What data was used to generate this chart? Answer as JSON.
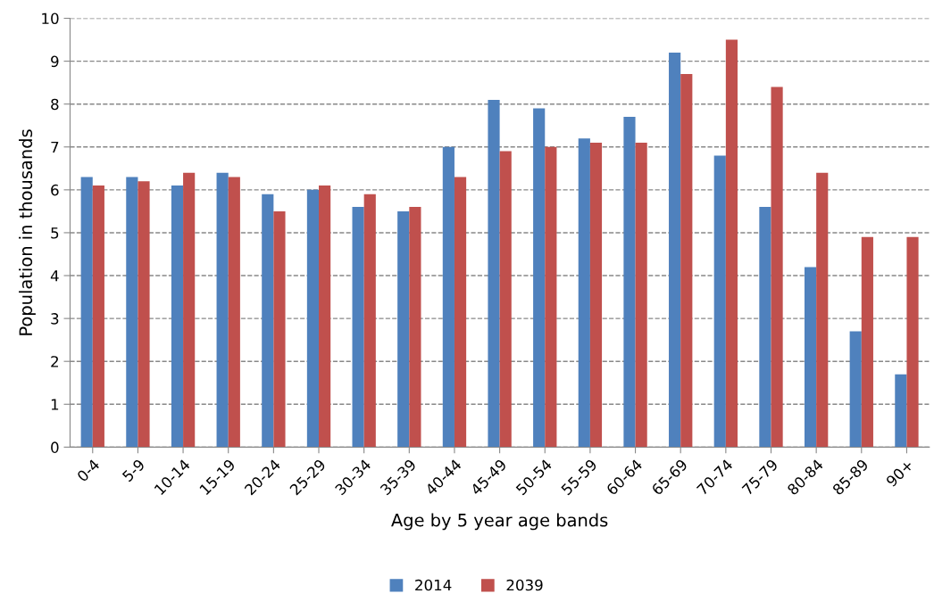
{
  "chart_data": {
    "type": "bar",
    "xlabel": "Age by 5 year age bands",
    "ylabel": "Population in thousands",
    "categories": [
      "0-4",
      "5-9",
      "10-14",
      "15-19",
      "20-24",
      "25-29",
      "30-34",
      "35-39",
      "40-44",
      "45-49",
      "50-54",
      "55-59",
      "60-64",
      "65-69",
      "70-74",
      "75-79",
      "80-84",
      "85-89",
      "90+"
    ],
    "series": [
      {
        "name": "2014",
        "color": "#4f81bd",
        "values": [
          6.3,
          6.3,
          6.1,
          6.4,
          5.9,
          6.0,
          5.6,
          5.5,
          7.0,
          8.1,
          7.9,
          7.2,
          7.7,
          9.2,
          6.8,
          5.6,
          4.2,
          2.7,
          1.7
        ]
      },
      {
        "name": "2039",
        "color": "#c0504d",
        "values": [
          6.1,
          6.2,
          6.4,
          6.3,
          5.5,
          6.1,
          5.9,
          5.6,
          6.3,
          6.9,
          7.0,
          7.1,
          7.1,
          8.7,
          9.5,
          8.4,
          6.4,
          4.9,
          4.9
        ]
      }
    ],
    "ylim": [
      0,
      10
    ],
    "yticks": [
      0,
      1,
      2,
      3,
      4,
      5,
      6,
      7,
      8,
      9,
      10
    ],
    "grid": "y",
    "legend": "bottom"
  }
}
